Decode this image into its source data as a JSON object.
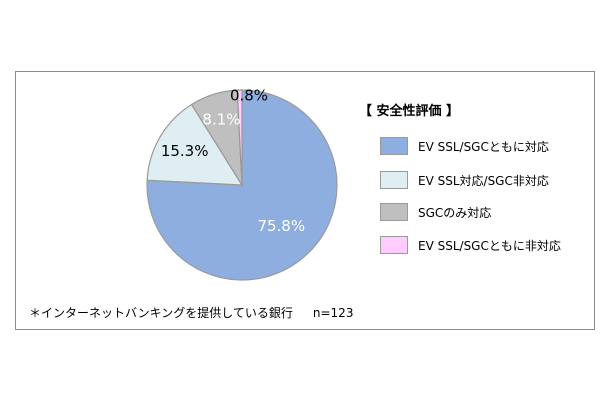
{
  "chart_data": {
    "type": "pie",
    "legend_title": "【 安全性評価 】",
    "legend_position": "right",
    "slices": [
      {
        "name": "EV SSL/SGCともに対応",
        "value": 75.8,
        "label": "75.8%",
        "color": "#8faee0"
      },
      {
        "name": "EV SSL対応/SGC非対応",
        "value": 15.3,
        "label": "15.3%",
        "color": "#dfeef3"
      },
      {
        "name": "SGCのみ対応",
        "value": 8.1,
        "label": "8.1%",
        "color": "#bfbfbf"
      },
      {
        "name": "EV SSL/SGCともに非対応",
        "value": 0.8,
        "label": "0.8%",
        "color": "#ffccff"
      }
    ]
  },
  "footnote": {
    "text": "＊インターネットバンキングを提供している銀行",
    "sample_size": "n=123"
  }
}
